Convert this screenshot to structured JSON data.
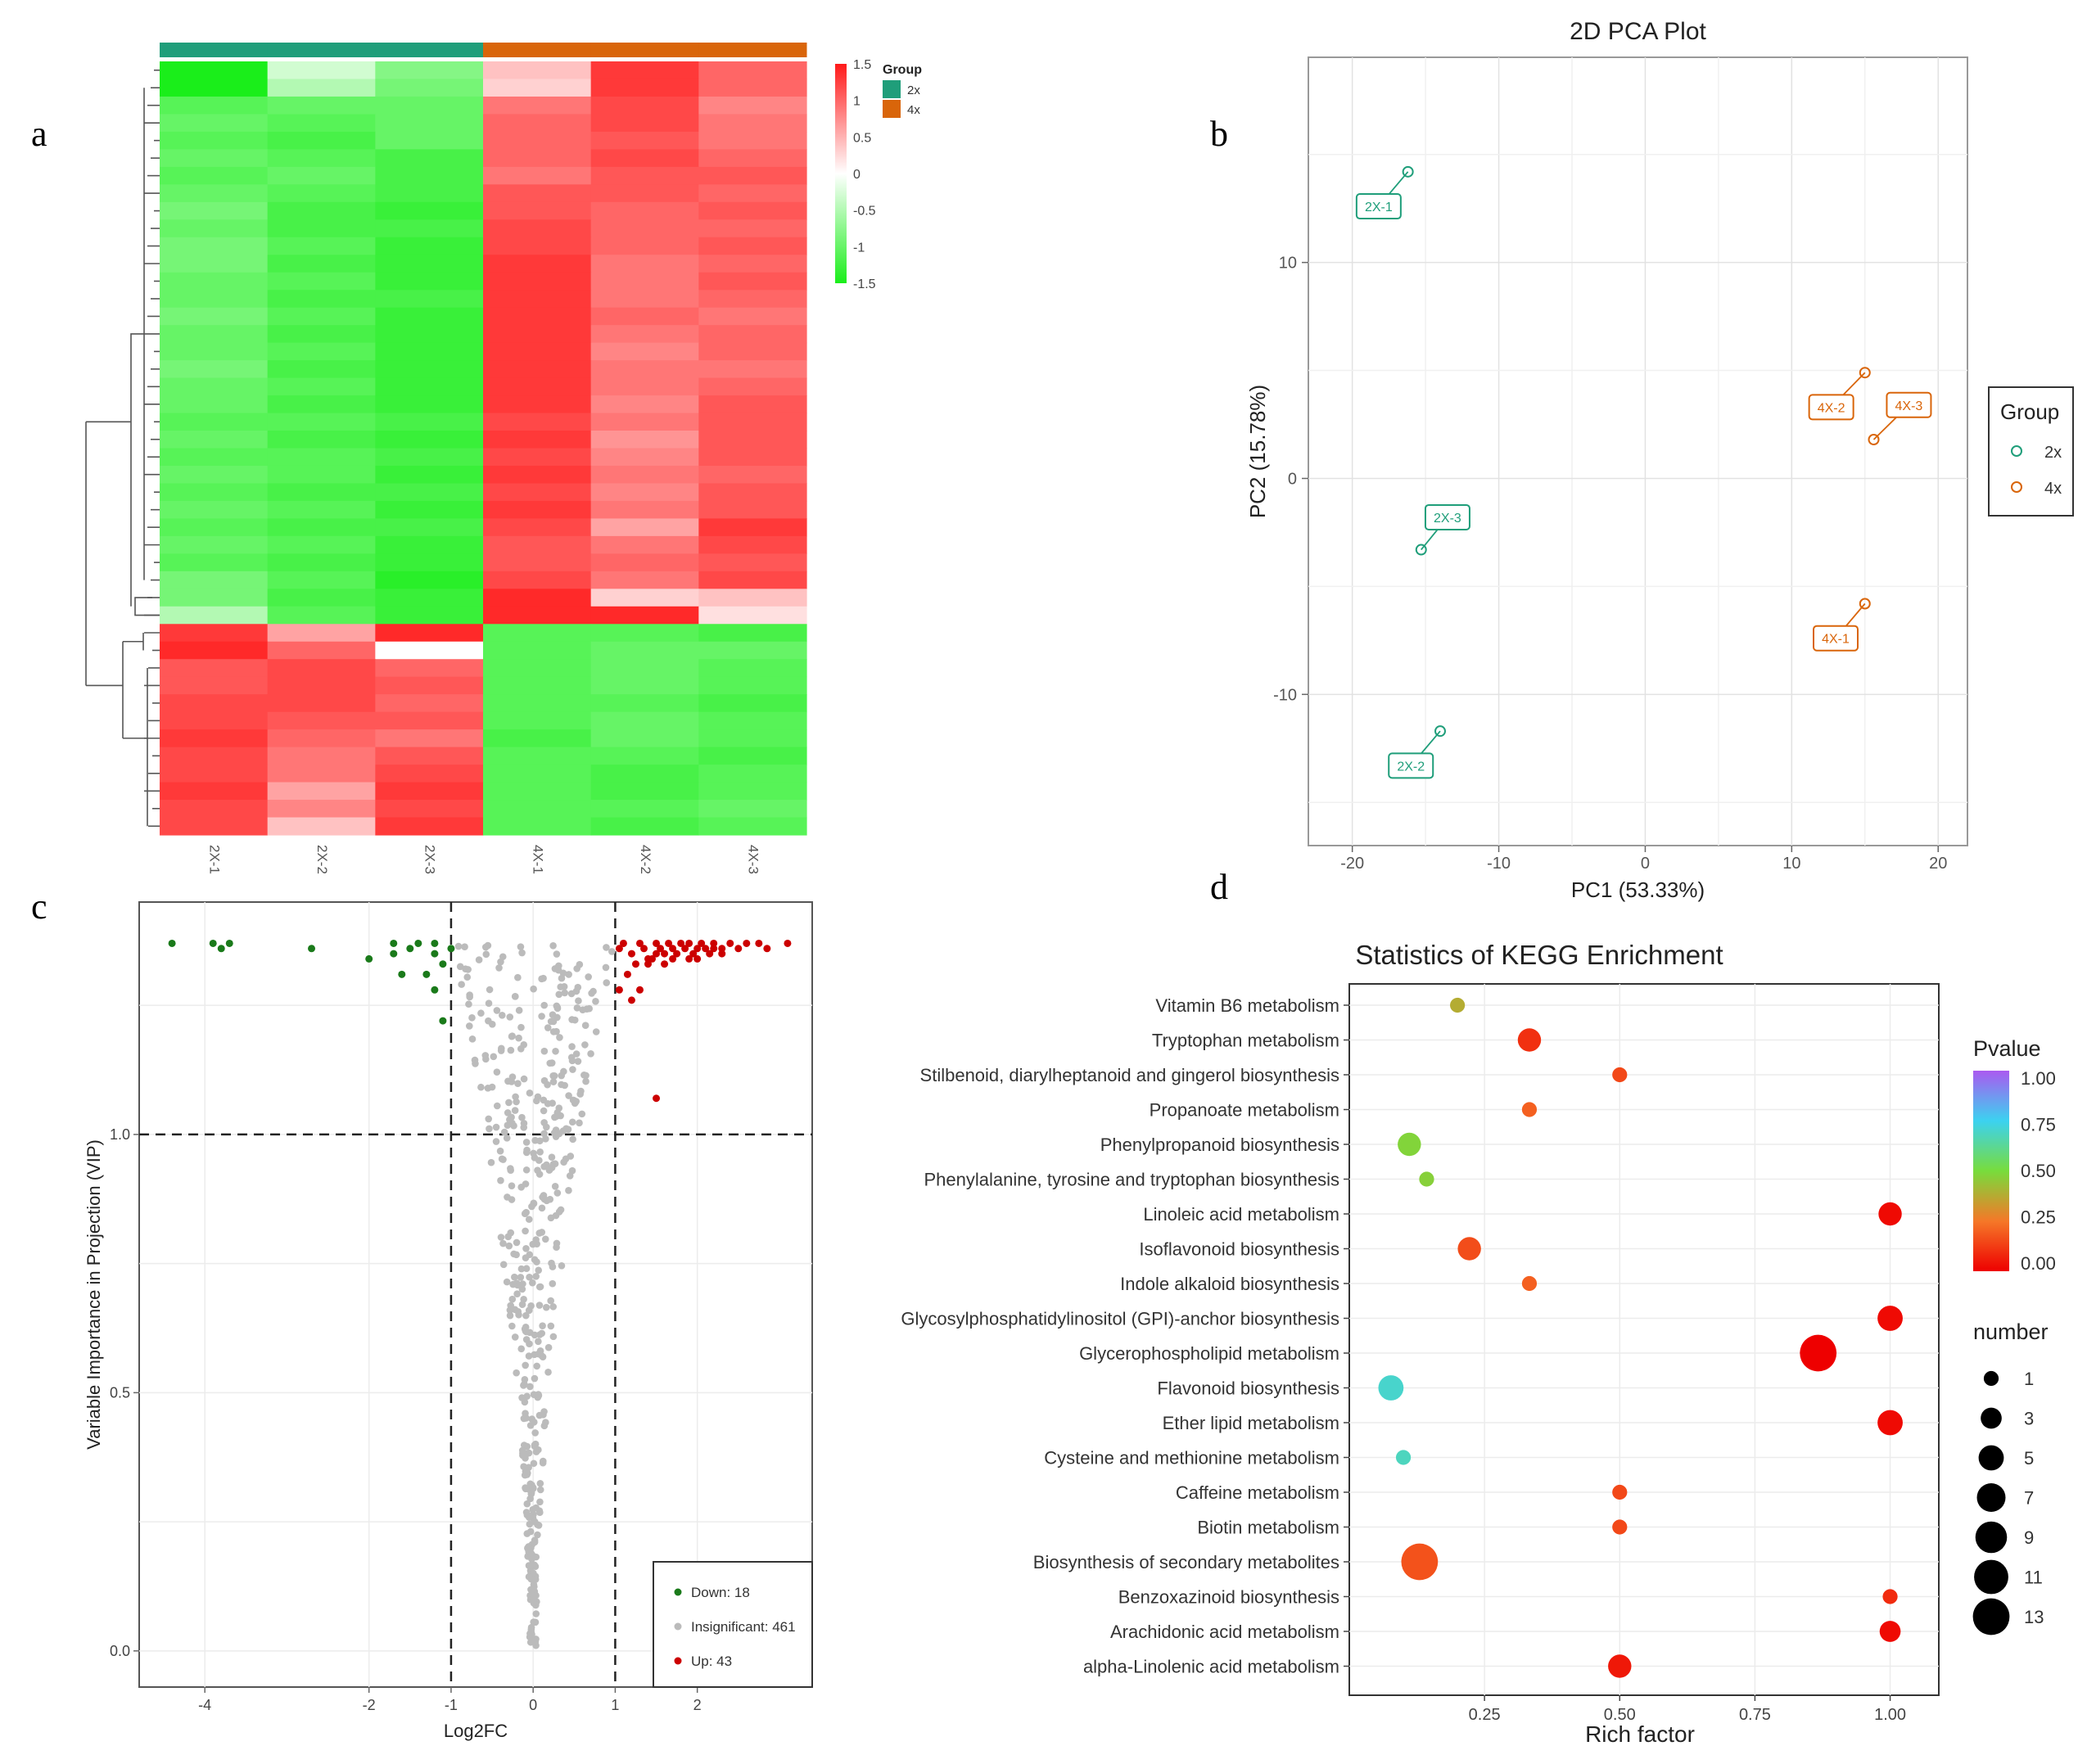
{
  "panel_labels": {
    "a": "a",
    "b": "b",
    "c": "c",
    "d": "d"
  },
  "colors": {
    "g2x": "#1f9e7a",
    "g4x": "#d9650a",
    "heat_high": "#ff1a1a",
    "heat_mid": "#ffffff",
    "heat_low": "#1aee1a",
    "down": "#1a7a1a",
    "insig": "#bbbbbb",
    "up": "#cc0000"
  },
  "chart_data": [
    {
      "type": "heatmap",
      "id": "a",
      "columns": [
        "2X-1",
        "2X-2",
        "2X-3",
        "4X-1",
        "4X-2",
        "4X-3"
      ],
      "column_groups": [
        "2x",
        "2x",
        "2x",
        "4x",
        "4x",
        "4x"
      ],
      "legend": {
        "title": "Group",
        "entries": [
          "2x",
          "4x"
        ],
        "color_ticks": [
          "1.5",
          "1",
          "0.5",
          "0",
          "-0.5",
          "-1",
          "-1.5"
        ],
        "range": [
          -1.5,
          1.5
        ]
      },
      "rows": [
        [
          -1.5,
          -0.3,
          -0.8,
          0.4,
          1.3,
          1.0
        ],
        [
          -1.5,
          -0.5,
          -0.9,
          0.3,
          1.3,
          1.0
        ],
        [
          -1.1,
          -1.0,
          -1.0,
          0.9,
          1.2,
          0.8
        ],
        [
          -1.0,
          -1.1,
          -1.0,
          1.0,
          1.2,
          0.9
        ],
        [
          -1.1,
          -1.2,
          -1.0,
          1.0,
          1.1,
          0.9
        ],
        [
          -1.0,
          -1.1,
          -1.2,
          1.0,
          1.2,
          1.0
        ],
        [
          -1.1,
          -1.0,
          -1.2,
          0.9,
          1.1,
          1.1
        ],
        [
          -1.0,
          -1.1,
          -1.2,
          1.1,
          1.1,
          1.0
        ],
        [
          -0.9,
          -1.2,
          -1.3,
          1.1,
          1.0,
          1.1
        ],
        [
          -1.0,
          -1.2,
          -1.2,
          1.2,
          1.0,
          1.0
        ],
        [
          -0.9,
          -1.1,
          -1.3,
          1.2,
          1.0,
          1.1
        ],
        [
          -0.9,
          -1.2,
          -1.3,
          1.3,
          0.9,
          1.0
        ],
        [
          -1.0,
          -1.1,
          -1.3,
          1.3,
          0.9,
          1.1
        ],
        [
          -1.0,
          -1.2,
          -1.2,
          1.3,
          0.9,
          1.0
        ],
        [
          -0.9,
          -1.1,
          -1.3,
          1.3,
          1.0,
          0.9
        ],
        [
          -1.0,
          -1.2,
          -1.3,
          1.3,
          0.9,
          1.0
        ],
        [
          -1.0,
          -1.1,
          -1.3,
          1.3,
          0.8,
          1.0
        ],
        [
          -0.9,
          -1.2,
          -1.3,
          1.3,
          0.9,
          0.9
        ],
        [
          -1.0,
          -1.1,
          -1.3,
          1.3,
          0.9,
          1.0
        ],
        [
          -1.0,
          -1.2,
          -1.3,
          1.3,
          0.8,
          1.1
        ],
        [
          -1.1,
          -1.1,
          -1.2,
          1.2,
          0.9,
          1.1
        ],
        [
          -1.0,
          -1.2,
          -1.3,
          1.3,
          0.7,
          1.1
        ],
        [
          -1.1,
          -1.1,
          -1.2,
          1.2,
          0.8,
          1.1
        ],
        [
          -1.0,
          -1.1,
          -1.3,
          1.3,
          0.9,
          1.0
        ],
        [
          -1.1,
          -1.2,
          -1.2,
          1.2,
          0.8,
          1.1
        ],
        [
          -1.0,
          -1.1,
          -1.3,
          1.3,
          0.9,
          1.1
        ],
        [
          -1.1,
          -1.2,
          -1.2,
          1.2,
          0.6,
          1.3
        ],
        [
          -1.0,
          -1.1,
          -1.3,
          1.1,
          0.9,
          1.2
        ],
        [
          -1.1,
          -1.2,
          -1.3,
          1.1,
          1.0,
          1.1
        ],
        [
          -0.9,
          -1.1,
          -1.4,
          1.2,
          0.9,
          1.2
        ],
        [
          -0.9,
          -1.2,
          -1.3,
          1.4,
          0.3,
          0.4
        ],
        [
          -0.5,
          -1.1,
          -1.3,
          1.4,
          1.4,
          0.2
        ],
        [
          1.3,
          0.6,
          1.4,
          -1.1,
          -1.1,
          -1.2
        ],
        [
          1.4,
          1.0,
          0.0,
          -1.1,
          -1.0,
          -1.0
        ],
        [
          1.1,
          1.2,
          1.0,
          -1.1,
          -1.0,
          -1.1
        ],
        [
          1.1,
          1.2,
          1.1,
          -1.1,
          -1.0,
          -1.1
        ],
        [
          1.2,
          1.2,
          1.0,
          -1.1,
          -1.1,
          -1.2
        ],
        [
          1.2,
          1.1,
          1.1,
          -1.1,
          -1.0,
          -1.1
        ],
        [
          1.3,
          1.0,
          0.9,
          -1.2,
          -1.0,
          -1.1
        ],
        [
          1.2,
          0.9,
          1.1,
          -1.1,
          -1.1,
          -1.2
        ],
        [
          1.2,
          0.9,
          1.2,
          -1.1,
          -1.2,
          -1.1
        ],
        [
          1.3,
          0.6,
          1.3,
          -1.1,
          -1.2,
          -1.1
        ],
        [
          1.2,
          0.8,
          1.2,
          -1.1,
          -1.1,
          -1.0
        ],
        [
          1.2,
          0.4,
          1.3,
          -1.1,
          -1.2,
          -1.1
        ]
      ]
    },
    {
      "type": "scatter",
      "id": "b",
      "title": "2D PCA Plot",
      "xlabel": "PC1 (53.33%)",
      "ylabel": "PC2 (15.78%)",
      "xlim": [
        -23,
        22
      ],
      "ylim": [
        -17,
        19.5
      ],
      "xticks": [
        -20,
        -10,
        0,
        10,
        20
      ],
      "yticks": [
        -10,
        0,
        10
      ],
      "legend": {
        "title": "Group",
        "entries": [
          "2x",
          "4x"
        ]
      },
      "points": [
        {
          "label": "2X-1",
          "group": "2x",
          "x": -16.2,
          "y": 14.2,
          "lx": -18.2,
          "ly": 12.6
        },
        {
          "label": "2X-3",
          "group": "2x",
          "x": -15.3,
          "y": -3.3,
          "lx": -13.5,
          "ly": -1.8
        },
        {
          "label": "2X-2",
          "group": "2x",
          "x": -14.0,
          "y": -11.7,
          "lx": -16.0,
          "ly": -13.3
        },
        {
          "label": "4X-2",
          "group": "4x",
          "x": 15.0,
          "y": 4.9,
          "lx": 12.7,
          "ly": 3.3
        },
        {
          "label": "4X-3",
          "group": "4x",
          "x": 15.6,
          "y": 1.8,
          "lx": 18.0,
          "ly": 3.4
        },
        {
          "label": "4X-1",
          "group": "4x",
          "x": 15.0,
          "y": -5.8,
          "lx": 13.0,
          "ly": -7.4
        }
      ]
    },
    {
      "type": "scatter",
      "id": "c",
      "xlabel": "Log2FC",
      "ylabel": "Variable Importance in Projection (VIP)",
      "xlim": [
        -4.8,
        3.4
      ],
      "ylim": [
        -0.07,
        1.45
      ],
      "xticks": [
        -4,
        -2,
        -1,
        0,
        1,
        2
      ],
      "yticks": [
        0.0,
        0.5,
        1.0
      ],
      "ytick_labels": [
        "0.0",
        "0.5",
        "1.0"
      ],
      "thresholds": {
        "x": [
          -1,
          1
        ],
        "y": 1.0
      },
      "legend": [
        "Down: 18",
        "Insignificant: 461",
        "Up: 43"
      ],
      "down_points": [
        [
          -4.4,
          1.37
        ],
        [
          -3.9,
          1.37
        ],
        [
          -3.8,
          1.36
        ],
        [
          -3.7,
          1.37
        ],
        [
          -2.7,
          1.36
        ],
        [
          -2.0,
          1.34
        ],
        [
          -1.7,
          1.37
        ],
        [
          -1.7,
          1.35
        ],
        [
          -1.5,
          1.36
        ],
        [
          -1.4,
          1.37
        ],
        [
          -1.2,
          1.37
        ],
        [
          -1.2,
          1.35
        ],
        [
          -1.1,
          1.33
        ],
        [
          -1.0,
          1.36
        ],
        [
          -1.6,
          1.31
        ],
        [
          -1.3,
          1.31
        ],
        [
          -1.2,
          1.28
        ],
        [
          -1.1,
          1.22
        ]
      ],
      "up_points": [
        [
          1.05,
          1.36
        ],
        [
          1.1,
          1.37
        ],
        [
          1.2,
          1.35
        ],
        [
          1.3,
          1.37
        ],
        [
          1.35,
          1.36
        ],
        [
          1.4,
          1.34
        ],
        [
          1.5,
          1.37
        ],
        [
          1.55,
          1.36
        ],
        [
          1.6,
          1.35
        ],
        [
          1.65,
          1.37
        ],
        [
          1.7,
          1.36
        ],
        [
          1.75,
          1.35
        ],
        [
          1.8,
          1.37
        ],
        [
          1.85,
          1.36
        ],
        [
          1.9,
          1.37
        ],
        [
          1.95,
          1.35
        ],
        [
          2.0,
          1.36
        ],
        [
          2.05,
          1.37
        ],
        [
          2.1,
          1.36
        ],
        [
          2.15,
          1.35
        ],
        [
          2.2,
          1.37
        ],
        [
          2.3,
          1.36
        ],
        [
          2.4,
          1.37
        ],
        [
          2.5,
          1.36
        ],
        [
          2.6,
          1.37
        ],
        [
          2.75,
          1.37
        ],
        [
          2.85,
          1.36
        ],
        [
          3.1,
          1.37
        ],
        [
          1.25,
          1.33
        ],
        [
          1.45,
          1.34
        ],
        [
          1.6,
          1.33
        ],
        [
          1.9,
          1.34
        ],
        [
          2.3,
          1.35
        ],
        [
          1.15,
          1.31
        ],
        [
          1.05,
          1.28
        ],
        [
          1.3,
          1.28
        ],
        [
          1.2,
          1.26
        ],
        [
          1.5,
          1.35
        ],
        [
          1.7,
          1.34
        ],
        [
          2.0,
          1.34
        ],
        [
          2.2,
          1.36
        ],
        [
          1.4,
          1.33
        ],
        [
          1.5,
          1.07
        ]
      ],
      "insig_count": 461
    },
    {
      "type": "scatter",
      "id": "d",
      "title": "Statistics of KEGG Enrichment",
      "xlabel": "Rich factor",
      "xlim": [
        0.0,
        1.09
      ],
      "xticks": [
        0.25,
        0.5,
        0.75,
        1.0
      ],
      "xtick_labels": [
        "0.25",
        "0.50",
        "0.75",
        "1.00"
      ],
      "legend_pvalue": {
        "title": "Pvalue",
        "ticks": [
          "1.00",
          "0.75",
          "0.50",
          "0.25",
          "0.00"
        ]
      },
      "legend_number": {
        "title": "number",
        "ticks": [
          "1",
          "3",
          "5",
          "7",
          "9",
          "11",
          "13"
        ]
      },
      "terms": [
        {
          "name": "Vitamin B6 metabolism",
          "rich": 0.2,
          "p": 0.38,
          "n": 1
        },
        {
          "name": "Tryptophan metabolism",
          "rich": 0.333,
          "p": 0.1,
          "n": 4
        },
        {
          "name": "Stilbenoid, diarylheptanoid and gingerol biosynthesis",
          "rich": 0.5,
          "p": 0.15,
          "n": 1
        },
        {
          "name": "Propanoate metabolism",
          "rich": 0.333,
          "p": 0.2,
          "n": 1
        },
        {
          "name": "Phenylpropanoid biosynthesis",
          "rich": 0.111,
          "p": 0.48,
          "n": 4
        },
        {
          "name": "Phenylalanine, tyrosine and tryptophan biosynthesis",
          "rich": 0.143,
          "p": 0.47,
          "n": 1
        },
        {
          "name": "Linoleic acid metabolism",
          "rich": 1.0,
          "p": 0.02,
          "n": 4
        },
        {
          "name": "Isoflavonoid biosynthesis",
          "rich": 0.222,
          "p": 0.16,
          "n": 4
        },
        {
          "name": "Indole alkaloid biosynthesis",
          "rich": 0.333,
          "p": 0.2,
          "n": 1
        },
        {
          "name": "Glycosylphosphatidylinositol (GPI)-anchor biosynthesis",
          "rich": 1.0,
          "p": 0.02,
          "n": 5
        },
        {
          "name": "Glycerophospholipid metabolism",
          "rich": 0.867,
          "p": 0.0,
          "n": 13
        },
        {
          "name": "Flavonoid biosynthesis",
          "rich": 0.077,
          "p": 0.7,
          "n": 5
        },
        {
          "name": "Ether lipid metabolism",
          "rich": 1.0,
          "p": 0.02,
          "n": 5
        },
        {
          "name": "Cysteine and methionine metabolism",
          "rich": 0.1,
          "p": 0.68,
          "n": 1
        },
        {
          "name": "Caffeine metabolism",
          "rich": 0.5,
          "p": 0.15,
          "n": 1
        },
        {
          "name": "Biotin metabolism",
          "rich": 0.5,
          "p": 0.15,
          "n": 1
        },
        {
          "name": "Biosynthesis of secondary metabolites",
          "rich": 0.13,
          "p": 0.17,
          "n": 13
        },
        {
          "name": "Benzoxazinoid biosynthesis",
          "rich": 1.0,
          "p": 0.09,
          "n": 1
        },
        {
          "name": "Arachidonic acid metabolism",
          "rich": 1.0,
          "p": 0.02,
          "n": 3
        },
        {
          "name": "alpha-Linolenic acid metabolism",
          "rich": 0.5,
          "p": 0.05,
          "n": 4
        }
      ]
    }
  ]
}
